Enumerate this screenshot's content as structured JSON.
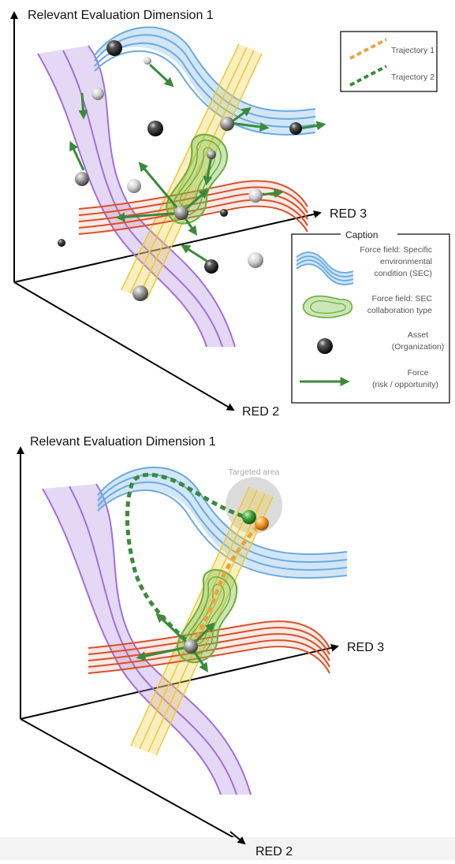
{
  "panel_top": {
    "axis_y_label": "Relevant Evaluation Dimension 1",
    "axis_x_label": "RED 3",
    "axis_z_label": "RED 2",
    "legend": {
      "items": [
        {
          "label": "Trajectory 1",
          "color": "#f0a040"
        },
        {
          "label": "Trajectory 2",
          "color": "#3a8a3a"
        }
      ]
    },
    "caption": {
      "title": "Caption",
      "items": [
        {
          "icon": "blue-wave-icon",
          "lines": [
            "Force field: Specific",
            "environmental",
            "condition (SEC)"
          ]
        },
        {
          "icon": "green-blob-icon",
          "lines": [
            "Force field: SEC",
            "collaboration type"
          ]
        },
        {
          "icon": "sphere-icon",
          "lines": [
            "Asset",
            "(Organization)"
          ]
        },
        {
          "icon": "green-arrow-icon",
          "lines": [
            "Force",
            "(risk / opportunity)"
          ]
        }
      ]
    }
  },
  "panel_bottom": {
    "axis_y_label": "Relevant Evaluation Dimension 1",
    "axis_x_label": "RED 3",
    "axis_z_label": "RED 2",
    "target_label": "Targeted area"
  },
  "colors": {
    "blue_field": "#7fb8e8",
    "purple_field": "#b58ee0",
    "red_field": "#d9502a",
    "yellow_field": "#f2d24a",
    "green_field": "#7cc04a",
    "force_arrow": "#3a8a3a",
    "trajectory_1": "#f0a040",
    "trajectory_2": "#3a8a3a"
  }
}
